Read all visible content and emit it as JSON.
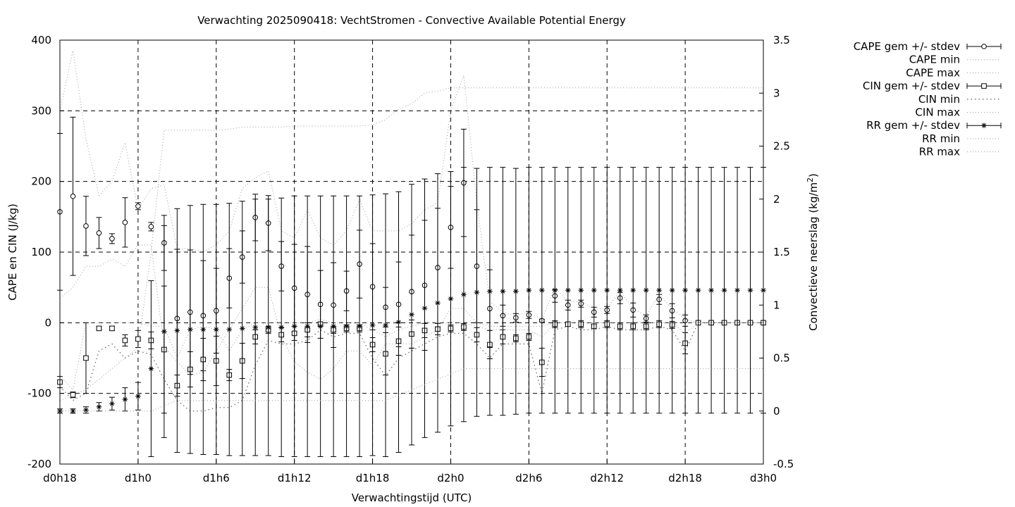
{
  "chart_data": {
    "type": "line",
    "title": "Verwachting 2025090418: VechtStromen - Convective Available Potential Energy",
    "xlabel": "Verwachtingstijd (UTC)",
    "ylabel": "CAPE en CIN (J/kg)",
    "y2label": "Convectieve neerslag (kg/m",
    "y2label_sup": "2",
    "y2label_end": ")",
    "xlim": [
      18,
      72
    ],
    "ylim": [
      -200,
      400
    ],
    "y2lim": [
      -0.5,
      3.5
    ],
    "grid": true,
    "legend_position": "top-right-outside",
    "x_ticks": [
      {
        "v": 18,
        "label": "d0h18"
      },
      {
        "v": 24,
        "label": "d1h0"
      },
      {
        "v": 30,
        "label": "d1h6"
      },
      {
        "v": 36,
        "label": "d1h12"
      },
      {
        "v": 42,
        "label": "d1h18"
      },
      {
        "v": 48,
        "label": "d2h0"
      },
      {
        "v": 54,
        "label": "d2h6"
      },
      {
        "v": 60,
        "label": "d2h12"
      },
      {
        "v": 66,
        "label": "d2h18"
      },
      {
        "v": 72,
        "label": "d3h0"
      }
    ],
    "y_ticks": [
      {
        "v": -200,
        "label": "-200"
      },
      {
        "v": -100,
        "label": "-100"
      },
      {
        "v": 0,
        "label": "0"
      },
      {
        "v": 100,
        "label": "100"
      },
      {
        "v": 200,
        "label": "200"
      },
      {
        "v": 300,
        "label": "300"
      },
      {
        "v": 400,
        "label": "400"
      }
    ],
    "y2_ticks": [
      {
        "v": -0.5,
        "label": "-0.5"
      },
      {
        "v": 0,
        "label": "0"
      },
      {
        "v": 0.5,
        "label": "0.5"
      },
      {
        "v": 1,
        "label": "1"
      },
      {
        "v": 1.5,
        "label": "1.5"
      },
      {
        "v": 2,
        "label": "2"
      },
      {
        "v": 2.5,
        "label": "2.5"
      },
      {
        "v": 3,
        "label": "3"
      },
      {
        "v": 3.5,
        "label": "3.5"
      }
    ],
    "x": [
      18,
      19,
      20,
      21,
      22,
      23,
      24,
      25,
      26,
      27,
      28,
      29,
      30,
      31,
      32,
      33,
      34,
      35,
      36,
      37,
      38,
      39,
      40,
      41,
      42,
      43,
      44,
      45,
      46,
      47,
      48,
      49,
      50,
      51,
      52,
      53,
      54,
      55,
      56,
      57,
      58,
      59,
      60,
      61,
      62,
      63,
      64,
      65,
      66,
      67,
      68,
      69,
      70,
      71,
      72
    ],
    "series": [
      {
        "name": "CAPE gem +/- stdev",
        "marker": "circle",
        "axis": "y",
        "mean": [
          157,
          179,
          137,
          127,
          119,
          142,
          165,
          136,
          113,
          6,
          15,
          10,
          17,
          63,
          93,
          149,
          141,
          80,
          49,
          40,
          26,
          25,
          45,
          83,
          51,
          22,
          26,
          44,
          53,
          78,
          135,
          198,
          80,
          20,
          10,
          7,
          11,
          3,
          38,
          25,
          27,
          15,
          18,
          35,
          18,
          6,
          33,
          17,
          3,
          0,
          0,
          0,
          0,
          0,
          0
        ],
        "err": [
          111,
          112,
          42,
          22,
          7,
          35,
          5,
          6,
          39,
          98,
          88,
          78,
          60,
          42,
          37,
          33,
          39,
          35,
          62,
          68,
          48,
          60,
          28,
          48,
          61,
          28,
          60,
          80,
          92,
          84,
          58,
          76,
          80,
          55,
          15,
          6,
          5,
          2,
          9,
          7,
          5,
          7,
          5,
          8,
          10,
          5,
          7,
          10,
          8,
          0,
          0,
          0,
          0,
          0,
          0
        ]
      },
      {
        "name": "CAPE min",
        "style": "dotted",
        "axis": "y",
        "values": [
          35,
          50,
          80,
          80,
          90,
          80,
          110,
          110,
          -35,
          -55,
          -75,
          -70,
          -40,
          -10,
          20,
          50,
          50,
          -20,
          -55,
          -70,
          -80,
          -65,
          -40,
          -40,
          -60,
          -30,
          -30,
          -30,
          -20,
          -10,
          20,
          20,
          0,
          -5,
          -5,
          -5,
          -5,
          -5,
          0,
          0,
          0,
          0,
          0,
          0,
          0,
          0,
          0,
          0,
          0,
          0,
          0,
          0,
          0,
          0,
          0
        ]
      },
      {
        "name": "CAPE max",
        "style": "dotted",
        "axis": "y",
        "values": [
          300,
          385,
          260,
          180,
          200,
          255,
          160,
          190,
          195,
          105,
          105,
          100,
          110,
          130,
          190,
          205,
          215,
          130,
          120,
          160,
          120,
          110,
          130,
          175,
          130,
          130,
          130,
          140,
          160,
          170,
          300,
          350,
          170,
          30,
          15,
          10,
          15,
          5,
          50,
          30,
          30,
          20,
          20,
          45,
          20,
          10,
          40,
          20,
          5,
          0,
          0,
          0,
          0,
          0,
          0
        ]
      },
      {
        "name": "CIN gem +/- stdev",
        "marker": "square",
        "axis": "y",
        "mean": [
          -84,
          -102,
          -50,
          -8,
          -8,
          -25,
          -23,
          -25,
          -38,
          -89,
          -66,
          -52,
          -54,
          -74,
          -54,
          -20,
          -10,
          -17,
          -15,
          -10,
          -2,
          -10,
          -8,
          -8,
          -31,
          -44,
          -26,
          -16,
          -11,
          -9,
          -8,
          -6,
          -17,
          -31,
          -20,
          -22,
          -20,
          -56,
          -2,
          -2,
          -2,
          -5,
          -2,
          -5,
          -5,
          -5,
          -2,
          -3,
          -29,
          0,
          0,
          0,
          0,
          0,
          0
        ],
        "err": [
          8,
          4,
          50,
          2,
          3,
          8,
          12,
          12,
          90,
          15,
          25,
          30,
          35,
          8,
          25,
          10,
          5,
          10,
          10,
          10,
          3,
          5,
          5,
          5,
          10,
          30,
          20,
          20,
          10,
          8,
          5,
          5,
          10,
          20,
          10,
          5,
          5,
          20,
          5,
          3,
          5,
          3,
          5,
          5,
          5,
          5,
          5,
          5,
          15,
          0,
          0,
          0,
          0,
          0,
          0
        ]
      },
      {
        "name": "CIN min",
        "style": "dotted",
        "axis": "y",
        "values": [
          -90,
          -110,
          -100,
          -40,
          -30,
          -50,
          -40,
          -45,
          -80,
          -110,
          -125,
          -125,
          -120,
          -120,
          -110,
          -60,
          -25,
          -30,
          -30,
          -25,
          -10,
          -20,
          -15,
          -15,
          -50,
          -75,
          -50,
          -40,
          -30,
          -20,
          -15,
          -15,
          -30,
          -50,
          -30,
          -30,
          -30,
          -100,
          -10,
          -5,
          -10,
          -10,
          -5,
          -10,
          -10,
          -10,
          -5,
          -10,
          -40,
          0,
          0,
          0,
          0,
          0,
          0
        ]
      },
      {
        "name": "CIN max",
        "style": "dotted",
        "axis": "y",
        "values": [
          -75,
          -95,
          0,
          0,
          0,
          0,
          0,
          -5,
          -5,
          -50,
          -10,
          -5,
          -10,
          -40,
          -10,
          0,
          0,
          0,
          0,
          0,
          5,
          0,
          0,
          0,
          -10,
          -20,
          -10,
          -5,
          0,
          0,
          0,
          0,
          -5,
          -10,
          -10,
          -10,
          -10,
          -20,
          0,
          0,
          0,
          0,
          0,
          0,
          0,
          0,
          0,
          0,
          -15,
          0,
          0,
          0,
          0,
          0,
          0
        ]
      },
      {
        "name": "RR gem +/- stdev",
        "marker": "star",
        "axis": "y2",
        "mean": [
          0.0,
          0.0,
          0.01,
          0.04,
          0.07,
          0.11,
          0.14,
          0.4,
          0.75,
          0.76,
          0.77,
          0.77,
          0.77,
          0.77,
          0.78,
          0.79,
          0.79,
          0.79,
          0.8,
          0.8,
          0.8,
          0.8,
          0.8,
          0.8,
          0.81,
          0.81,
          0.84,
          0.91,
          0.97,
          1.02,
          1.06,
          1.1,
          1.12,
          1.13,
          1.13,
          1.13,
          1.14,
          1.14,
          1.14,
          1.14,
          1.14,
          1.14,
          1.14,
          1.14,
          1.14,
          1.14,
          1.14,
          1.14,
          1.14,
          1.14,
          1.14,
          1.14,
          1.14,
          1.14,
          1.14
        ],
        "err": [
          0.02,
          0.02,
          0.03,
          0.04,
          0.06,
          0.11,
          0.13,
          0.83,
          1.0,
          1.15,
          1.17,
          1.18,
          1.18,
          1.19,
          1.2,
          1.21,
          1.21,
          1.22,
          1.23,
          1.23,
          1.23,
          1.23,
          1.23,
          1.23,
          1.23,
          1.24,
          1.23,
          1.23,
          1.22,
          1.22,
          1.2,
          1.2,
          1.17,
          1.17,
          1.17,
          1.16,
          1.16,
          1.16,
          1.16,
          1.16,
          1.16,
          1.16,
          1.16,
          1.16,
          1.16,
          1.16,
          1.16,
          1.16,
          1.16,
          1.16,
          1.16,
          1.16,
          1.16,
          1.16,
          1.16
        ]
      },
      {
        "name": "RR min",
        "style": "dotted",
        "axis": "y2",
        "values": [
          0.0,
          0.0,
          0.0,
          0.0,
          0.0,
          0.0,
          0.0,
          0.0,
          0.05,
          0.1,
          0.1,
          0.1,
          0.1,
          0.1,
          0.1,
          0.1,
          0.1,
          0.1,
          0.1,
          0.1,
          0.1,
          0.1,
          0.1,
          0.1,
          0.1,
          0.1,
          0.15,
          0.2,
          0.25,
          0.3,
          0.35,
          0.4,
          0.4,
          0.4,
          0.4,
          0.4,
          0.4,
          0.4,
          0.4,
          0.4,
          0.4,
          0.4,
          0.4,
          0.4,
          0.4,
          0.4,
          0.4,
          0.4,
          0.4,
          0.4,
          0.4,
          0.4,
          0.4,
          0.4,
          0.4
        ]
      },
      {
        "name": "RR max",
        "style": "dotted",
        "axis": "y2",
        "values": [
          0.1,
          0.15,
          0.2,
          0.3,
          0.4,
          0.5,
          0.6,
          1.5,
          2.65,
          2.65,
          2.65,
          2.65,
          2.65,
          2.66,
          2.68,
          2.68,
          2.68,
          2.68,
          2.69,
          2.69,
          2.69,
          2.69,
          2.69,
          2.69,
          2.7,
          2.75,
          2.85,
          2.9,
          3.0,
          3.02,
          3.05,
          3.05,
          3.05,
          3.05,
          3.05,
          3.05,
          3.05,
          3.05,
          3.05,
          3.05,
          3.05,
          3.05,
          3.05,
          3.05,
          3.05,
          3.05,
          3.05,
          3.05,
          3.05,
          3.05,
          3.05,
          3.05,
          3.05,
          3.05,
          3.05
        ]
      }
    ]
  }
}
